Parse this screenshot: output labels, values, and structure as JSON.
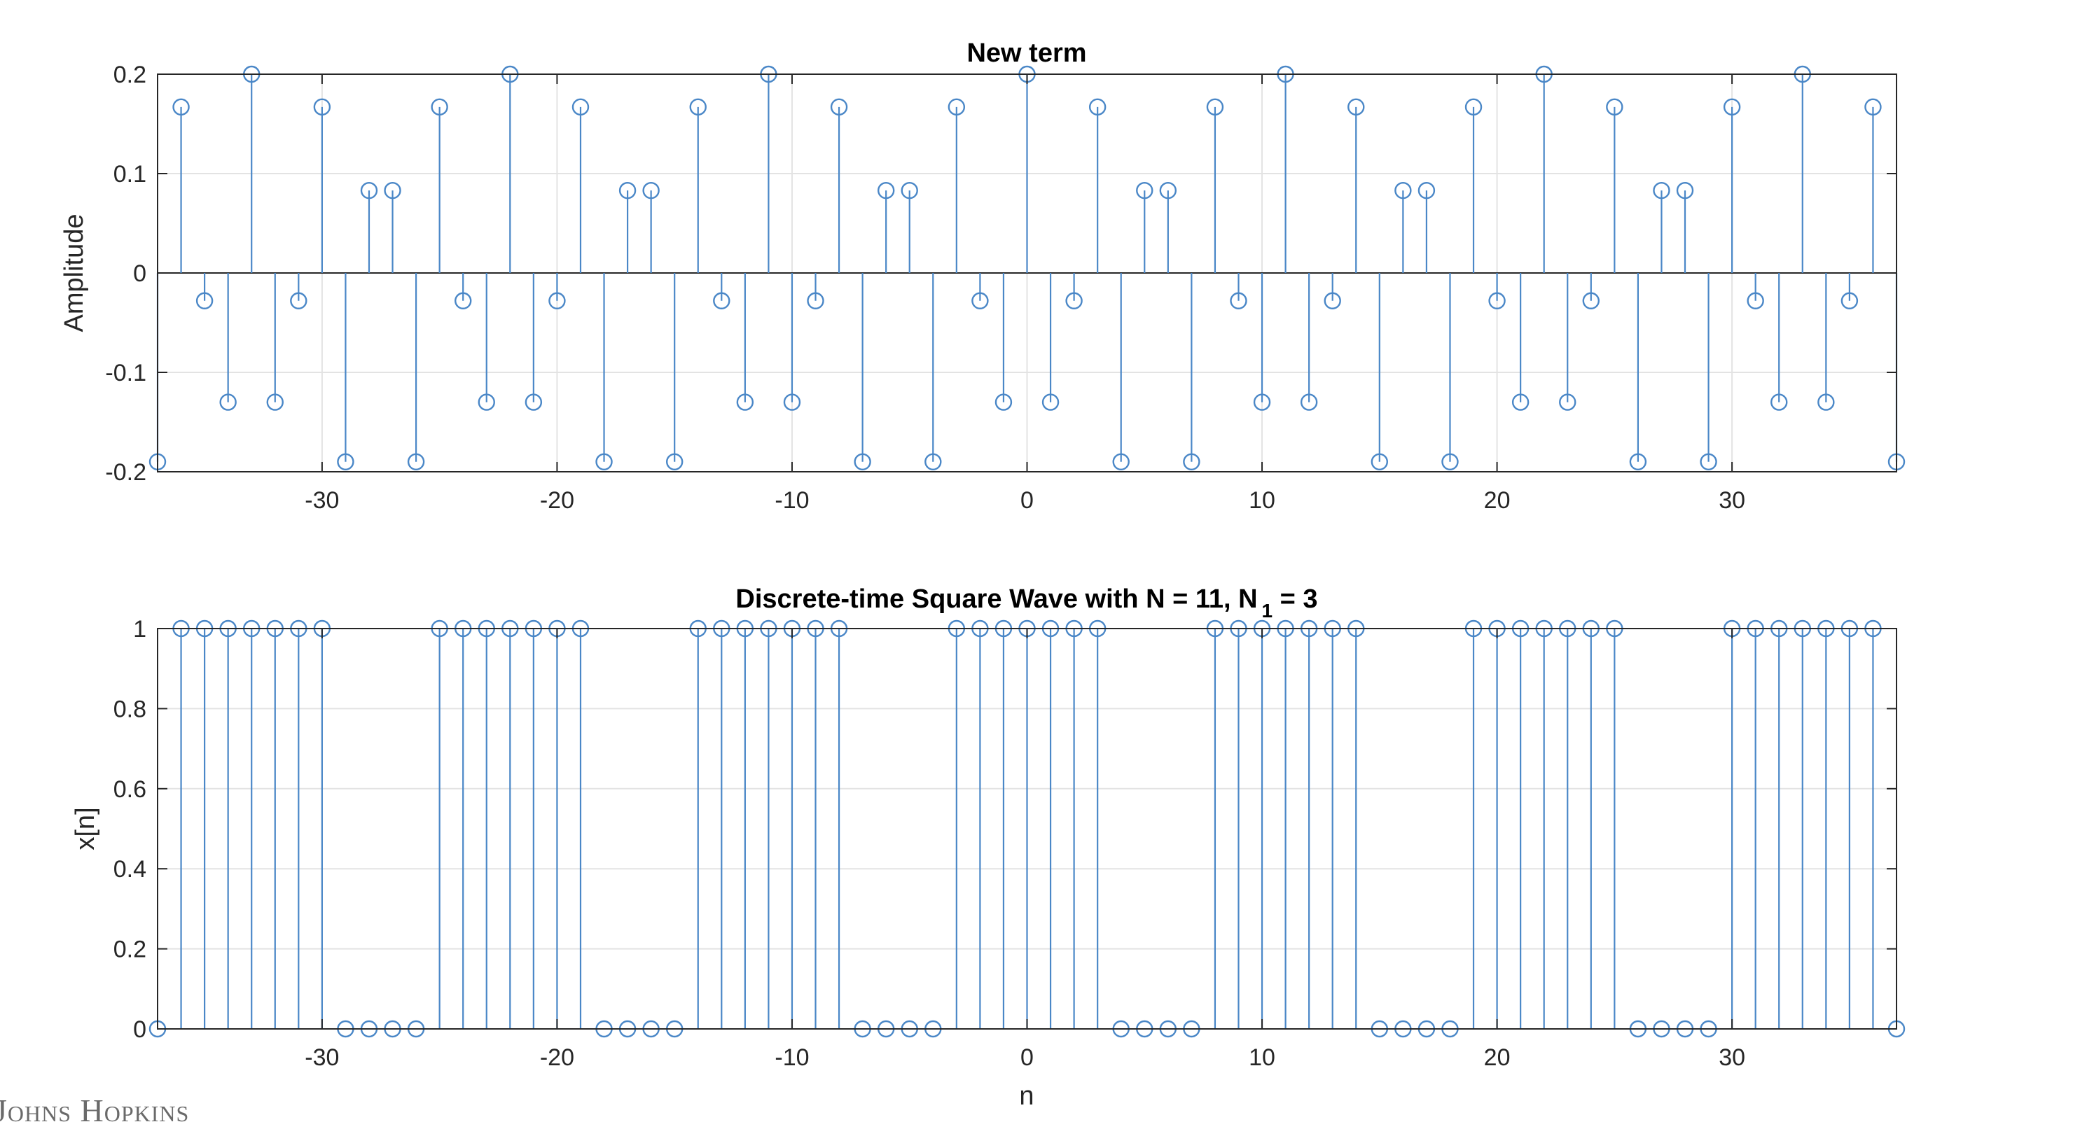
{
  "watermark": "Johns Hopkins",
  "style": {
    "stem_color": "#4a87c7",
    "grid_color": "#e3e3e3",
    "axis_color": "#262626",
    "grid": true
  },
  "chart_data": [
    {
      "type": "stem",
      "title": "New term",
      "xlabel": "",
      "ylabel": "Amplitude",
      "xlim": [
        -37,
        37
      ],
      "ylim": [
        -0.2,
        0.2
      ],
      "xticks": [
        -30,
        -20,
        -10,
        0,
        10,
        20,
        30
      ],
      "xtick_labels": [
        "-30",
        "-20",
        "-10",
        "0",
        "10",
        "20",
        "30"
      ],
      "yticks": [
        -0.2,
        -0.1,
        0,
        0.1,
        0.2
      ],
      "ytick_labels": [
        "-0.2",
        "-0.1",
        "0",
        "0.1",
        "0.2"
      ],
      "x": [
        -37,
        -36,
        -35,
        -34,
        -33,
        -32,
        -31,
        -30,
        -29,
        -28,
        -27,
        -26,
        -25,
        -24,
        -23,
        -22,
        -21,
        -20,
        -19,
        -18,
        -17,
        -16,
        -15,
        -14,
        -13,
        -12,
        -11,
        -10,
        -9,
        -8,
        -7,
        -6,
        -5,
        -4,
        -3,
        -2,
        -1,
        0,
        1,
        2,
        3,
        4,
        5,
        6,
        7,
        8,
        9,
        10,
        11,
        12,
        13,
        14,
        15,
        16,
        17,
        18,
        19,
        20,
        21,
        22,
        23,
        24,
        25,
        26,
        27,
        28,
        29,
        30,
        31,
        32,
        33,
        34,
        35,
        36,
        37
      ],
      "values": [
        -0.19,
        0.167,
        -0.028,
        -0.13,
        0.2,
        -0.13,
        -0.028,
        0.167,
        -0.19,
        0.083,
        0.083,
        -0.19,
        0.167,
        -0.028,
        -0.13,
        0.2,
        -0.13,
        -0.028,
        0.167,
        -0.19,
        0.083,
        0.083,
        -0.19,
        0.167,
        -0.028,
        -0.13,
        0.2,
        -0.13,
        -0.028,
        0.167,
        -0.19,
        0.083,
        0.083,
        -0.19,
        0.167,
        -0.028,
        -0.13,
        0.2,
        -0.13,
        -0.028,
        0.167,
        -0.19,
        0.083,
        0.083,
        -0.19,
        0.167,
        -0.028,
        -0.13,
        0.2,
        -0.13,
        -0.028,
        0.167,
        -0.19,
        0.083,
        0.083,
        -0.19,
        0.167,
        -0.028,
        -0.13,
        0.2,
        -0.13,
        -0.028,
        0.167,
        -0.19,
        0.083,
        0.083,
        -0.19,
        0.167,
        -0.028,
        -0.13,
        0.2,
        -0.13,
        -0.028,
        0.167,
        -0.19
      ]
    },
    {
      "type": "stem",
      "title_main": "Discrete-time Square Wave with N = 11, N",
      "title_sub": "1",
      "title_tail": " = 3",
      "xlabel": "n",
      "ylabel": "x[n]",
      "xlim": [
        -37,
        37
      ],
      "ylim": [
        0,
        1
      ],
      "xticks": [
        -30,
        -20,
        -10,
        0,
        10,
        20,
        30
      ],
      "xtick_labels": [
        "-30",
        "-20",
        "-10",
        "0",
        "10",
        "20",
        "30"
      ],
      "yticks": [
        0,
        0.2,
        0.4,
        0.6,
        0.8,
        1
      ],
      "ytick_labels": [
        "0",
        "0.2",
        "0.4",
        "0.6",
        "0.8",
        "1"
      ],
      "x": [
        -37,
        -36,
        -35,
        -34,
        -33,
        -32,
        -31,
        -30,
        -29,
        -28,
        -27,
        -26,
        -25,
        -24,
        -23,
        -22,
        -21,
        -20,
        -19,
        -18,
        -17,
        -16,
        -15,
        -14,
        -13,
        -12,
        -11,
        -10,
        -9,
        -8,
        -7,
        -6,
        -5,
        -4,
        -3,
        -2,
        -1,
        0,
        1,
        2,
        3,
        4,
        5,
        6,
        7,
        8,
        9,
        10,
        11,
        12,
        13,
        14,
        15,
        16,
        17,
        18,
        19,
        20,
        21,
        22,
        23,
        24,
        25,
        26,
        27,
        28,
        29,
        30,
        31,
        32,
        33,
        34,
        35,
        36,
        37
      ],
      "values": [
        0,
        1,
        1,
        1,
        1,
        1,
        1,
        1,
        0,
        0,
        0,
        0,
        1,
        1,
        1,
        1,
        1,
        1,
        1,
        0,
        0,
        0,
        0,
        1,
        1,
        1,
        1,
        1,
        1,
        1,
        0,
        0,
        0,
        0,
        1,
        1,
        1,
        1,
        1,
        1,
        1,
        0,
        0,
        0,
        0,
        1,
        1,
        1,
        1,
        1,
        1,
        1,
        0,
        0,
        0,
        0,
        1,
        1,
        1,
        1,
        1,
        1,
        1,
        0,
        0,
        0,
        0,
        1,
        1,
        1,
        1,
        1,
        1,
        1,
        0
      ]
    }
  ]
}
